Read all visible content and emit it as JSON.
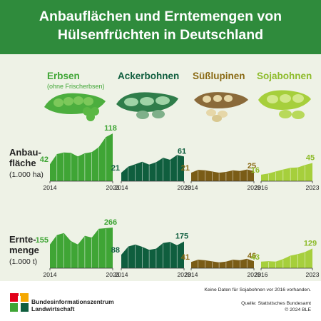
{
  "header": {
    "title_line1": "Anbauflächen und Erntemengen von",
    "title_line2": "Hülsenfrüchten in Deutschland"
  },
  "crops": [
    {
      "name": "Erbsen",
      "sub": "(ohne Frischerbsen)",
      "color": "#3fa535",
      "text_color": "#3fa535"
    },
    {
      "name": "Ackerbohnen",
      "sub": "",
      "color": "#0f5e3e",
      "text_color": "#0f5e3e"
    },
    {
      "name": "Süßlupinen",
      "sub": "",
      "color": "#7a5c16",
      "text_color": "#8a6a14"
    },
    {
      "name": "Sojabohnen",
      "sub": "",
      "color": "#a6cf3c",
      "text_color": "#8dbb2a"
    }
  ],
  "rows": [
    {
      "label_line1": "Anbau-",
      "label_line2": "fläche",
      "unit": "(1.000 ha)"
    },
    {
      "label_line1": "Ernte-",
      "label_line2": "menge",
      "unit": "(1.000 t)"
    }
  ],
  "chart_data": [
    {
      "type": "area",
      "title": "Erbsen – Anbaufläche",
      "x": [
        2014,
        2015,
        2016,
        2017,
        2018,
        2019,
        2020,
        2021,
        2022,
        2023
      ],
      "values": [
        42,
        67,
        71,
        70,
        61,
        69,
        72,
        84,
        109,
        118
      ],
      "start_label": "42",
      "end_label": "118",
      "tick_start": "2014",
      "tick_end": "2023",
      "ylim": [
        0,
        120
      ]
    },
    {
      "type": "area",
      "title": "Ackerbohnen – Anbaufläche",
      "x": [
        2014,
        2015,
        2016,
        2017,
        2018,
        2019,
        2020,
        2021,
        2022,
        2023
      ],
      "values": [
        21,
        36,
        42,
        48,
        41,
        47,
        58,
        53,
        65,
        61
      ],
      "start_label": "21",
      "end_label": "61",
      "tick_start": "2014",
      "tick_end": "2023",
      "ylim": [
        0,
        120
      ]
    },
    {
      "type": "area",
      "title": "Süßlupinen – Anbaufläche",
      "x": [
        2014,
        2015,
        2016,
        2017,
        2018,
        2019,
        2020,
        2021,
        2022,
        2023
      ],
      "values": [
        21,
        28,
        27,
        24,
        21,
        23,
        27,
        25,
        29,
        25
      ],
      "start_label": "21",
      "end_label": "25",
      "tick_start": "2014",
      "tick_end": "2023",
      "ylim": [
        0,
        120
      ]
    },
    {
      "type": "area",
      "title": "Sojabohnen – Anbaufläche",
      "x": [
        2016,
        2017,
        2018,
        2019,
        2020,
        2021,
        2022,
        2023
      ],
      "values": [
        16,
        19,
        24,
        29,
        33,
        34,
        40,
        45
      ],
      "start_label": "16",
      "end_label": "45",
      "tick_start": "2016",
      "tick_end": "2023",
      "ylim": [
        0,
        120
      ]
    },
    {
      "type": "area",
      "title": "Erbsen – Erntemenge",
      "x": [
        2014,
        2015,
        2016,
        2017,
        2018,
        2019,
        2020,
        2021,
        2022,
        2023
      ],
      "values": [
        155,
        217,
        230,
        178,
        155,
        212,
        200,
        258,
        262,
        266
      ],
      "start_label": "155",
      "end_label": "266",
      "tick_start": "2014",
      "tick_end": "2023",
      "ylim": [
        0,
        280
      ]
    },
    {
      "type": "area",
      "title": "Ackerbohnen – Erntemenge",
      "x": [
        2014,
        2015,
        2016,
        2017,
        2018,
        2019,
        2020,
        2021,
        2022,
        2023
      ],
      "values": [
        88,
        142,
        155,
        140,
        120,
        128,
        165,
        172,
        150,
        175
      ],
      "start_label": "88",
      "end_label": "175",
      "tick_start": "2014",
      "tick_end": "2023",
      "ylim": [
        0,
        280
      ]
    },
    {
      "type": "area",
      "title": "Süßlupinen – Erntemenge",
      "x": [
        2014,
        2015,
        2016,
        2017,
        2018,
        2019,
        2020,
        2021,
        2022,
        2023
      ],
      "values": [
        41,
        56,
        52,
        45,
        38,
        43,
        56,
        52,
        62,
        46
      ],
      "start_label": "41",
      "end_label": "46",
      "tick_start": "2014",
      "tick_end": "2023",
      "ylim": [
        0,
        280
      ]
    },
    {
      "type": "area",
      "title": "Sojabohnen – Erntemenge",
      "x": [
        2016,
        2017,
        2018,
        2019,
        2020,
        2021,
        2022,
        2023
      ],
      "values": [
        43,
        46,
        43,
        60,
        82,
        92,
        106,
        129
      ],
      "start_label": "43",
      "end_label": "129",
      "tick_start": "2016",
      "tick_end": "2023",
      "ylim": [
        0,
        280
      ]
    }
  ],
  "footer": {
    "org_line1": "Bundesinformationszentrum",
    "org_line2": "Landwirtschaft",
    "note": "Keine Daten für Sojabohnen vor 2016 vorhanden.",
    "source_line1": "Quelle: Statistisches Bundesamt",
    "source_line2": "© 2024 BLE"
  }
}
